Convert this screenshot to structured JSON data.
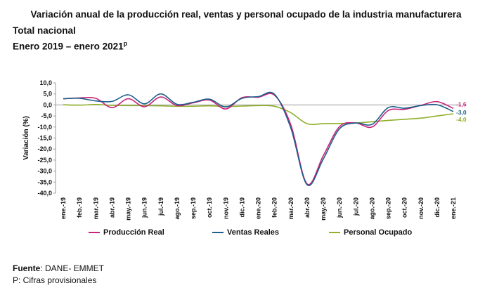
{
  "header": {
    "title": "Variación anual de la producción real, ventas y personal ocupado de la industria manufacturera",
    "subtitle1": "Total nacional",
    "subtitle2": "Enero 2019 – enero 2021",
    "subtitle2_sup": "p"
  },
  "footer": {
    "source_label": "Fuente",
    "source_text": ": DANE- EMMET",
    "note": "P: Cifras provisionales"
  },
  "chart_data": {
    "type": "line",
    "title": "Variación anual de la producción real, ventas y personal ocupado de la industria manufacturera",
    "ylabel": "Variación (%)",
    "xlabel": "",
    "ylim": [
      -40,
      10
    ],
    "yticks": [
      10.0,
      5.0,
      0.0,
      -5.0,
      -10.0,
      -15.0,
      -20.0,
      -25.0,
      -30.0,
      -35.0,
      -40.0
    ],
    "ytick_labels": [
      "10,0",
      "5,0",
      "0,0",
      "-5,0",
      "-10,0",
      "-15,0",
      "-20,0",
      "-25,0",
      "-30,0",
      "-35,0",
      "-40,0"
    ],
    "categories": [
      "ene-19",
      "feb-19",
      "mar-19",
      "abr-19",
      "may-19",
      "jun-19",
      "jul-19",
      "ago-19",
      "sep-19",
      "oct-19",
      "nov-19",
      "dic-19",
      "ene-20",
      "feb-20",
      "mar-20",
      "abr-20",
      "may-20",
      "jun-20",
      "jul-20",
      "ago-20",
      "sep-20",
      "oct-20",
      "nov-20",
      "dic-20",
      "ene-21"
    ],
    "xtick_labels": [
      "ene.-19",
      "feb.-19",
      "mar.-19",
      "abr.-19",
      "may.-19",
      "jun.-19",
      "jul.-19",
      "ago.-19",
      "sep.-19",
      "oct.-19",
      "nov.-19",
      "dic.-19",
      "ene.-20",
      "feb.-20",
      "mar.-20",
      "abr.-20",
      "may.-20",
      "jun.-20",
      "jul.-20",
      "ago.-20",
      "sep.-20",
      "oct.-20",
      "nov.-20",
      "dic.-20",
      "ene.-21"
    ],
    "series": [
      {
        "name": "Producción Real",
        "color": "#c8237a",
        "values": [
          2.8,
          3.2,
          3.0,
          -1.2,
          2.8,
          -0.8,
          3.6,
          -0.3,
          1.0,
          2.2,
          -1.8,
          3.3,
          3.5,
          4.4,
          -9.0,
          -35.8,
          -23.0,
          -9.8,
          -8.2,
          -10.0,
          -2.5,
          -2.0,
          -0.2,
          1.5,
          -1.6
        ],
        "end_label": "-1,6"
      },
      {
        "name": "Ventas Reales",
        "color": "#1d5f8a",
        "values": [
          2.8,
          3.0,
          1.8,
          1.6,
          4.6,
          0.5,
          5.0,
          0.3,
          1.2,
          2.6,
          -0.9,
          3.0,
          3.8,
          4.8,
          -10.5,
          -36.2,
          -24.5,
          -10.8,
          -8.2,
          -8.8,
          -1.2,
          -1.5,
          -0.3,
          0.1,
          -3.0
        ],
        "end_label": "-3,0"
      },
      {
        "name": "Personal Ocupado",
        "color": "#8fb02a",
        "values": [
          0.1,
          -0.1,
          0.2,
          -0.2,
          -0.3,
          -0.3,
          -0.4,
          -0.6,
          -0.6,
          -0.4,
          -0.7,
          -0.5,
          -0.3,
          -0.6,
          -3.5,
          -8.5,
          -8.5,
          -8.4,
          -8.2,
          -7.6,
          -7.0,
          -6.5,
          -6.0,
          -5.0,
          -4.0
        ],
        "end_label": "-4,0"
      }
    ],
    "legend": "bottom",
    "grid": false
  }
}
